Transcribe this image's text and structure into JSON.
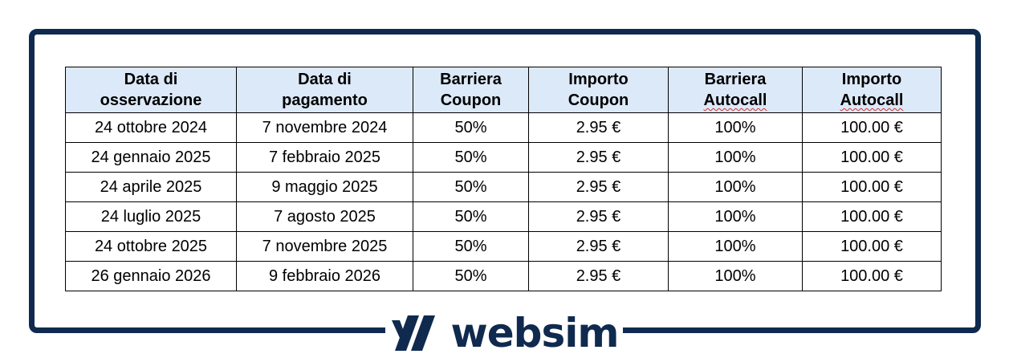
{
  "table": {
    "headers": [
      {
        "line1": "Data di",
        "line2": "osservazione"
      },
      {
        "line1": "Data di",
        "line2": "pagamento"
      },
      {
        "line1": "Barriera",
        "line2": "Coupon"
      },
      {
        "line1": "Importo",
        "line2": "Coupon"
      },
      {
        "line1": "Barriera",
        "line2": "Autocall"
      },
      {
        "line1": "Importo",
        "line2": "Autocall"
      }
    ],
    "rows": [
      [
        "24 ottobre 2024",
        "7 novembre 2024",
        "50%",
        "2.95 €",
        "100%",
        "100.00 €"
      ],
      [
        "24 gennaio 2025",
        "7 febbraio 2025",
        "50%",
        "2.95 €",
        "100%",
        "100.00 €"
      ],
      [
        "24 aprile 2025",
        "9 maggio 2025",
        "50%",
        "2.95 €",
        "100%",
        "100.00 €"
      ],
      [
        "24 luglio 2025",
        "7 agosto 2025",
        "50%",
        "2.95 €",
        "100%",
        "100.00 €"
      ],
      [
        "24 ottobre 2025",
        "7 novembre 2025",
        "50%",
        "2.95 €",
        "100%",
        "100.00 €"
      ],
      [
        "26 gennaio 2026",
        "9 febbraio 2026",
        "50%",
        "2.95 €",
        "100%",
        "100.00 €"
      ]
    ]
  },
  "brand": {
    "name": "websim",
    "color": "#0f2a4e",
    "header_bg": "#dce9f8"
  }
}
